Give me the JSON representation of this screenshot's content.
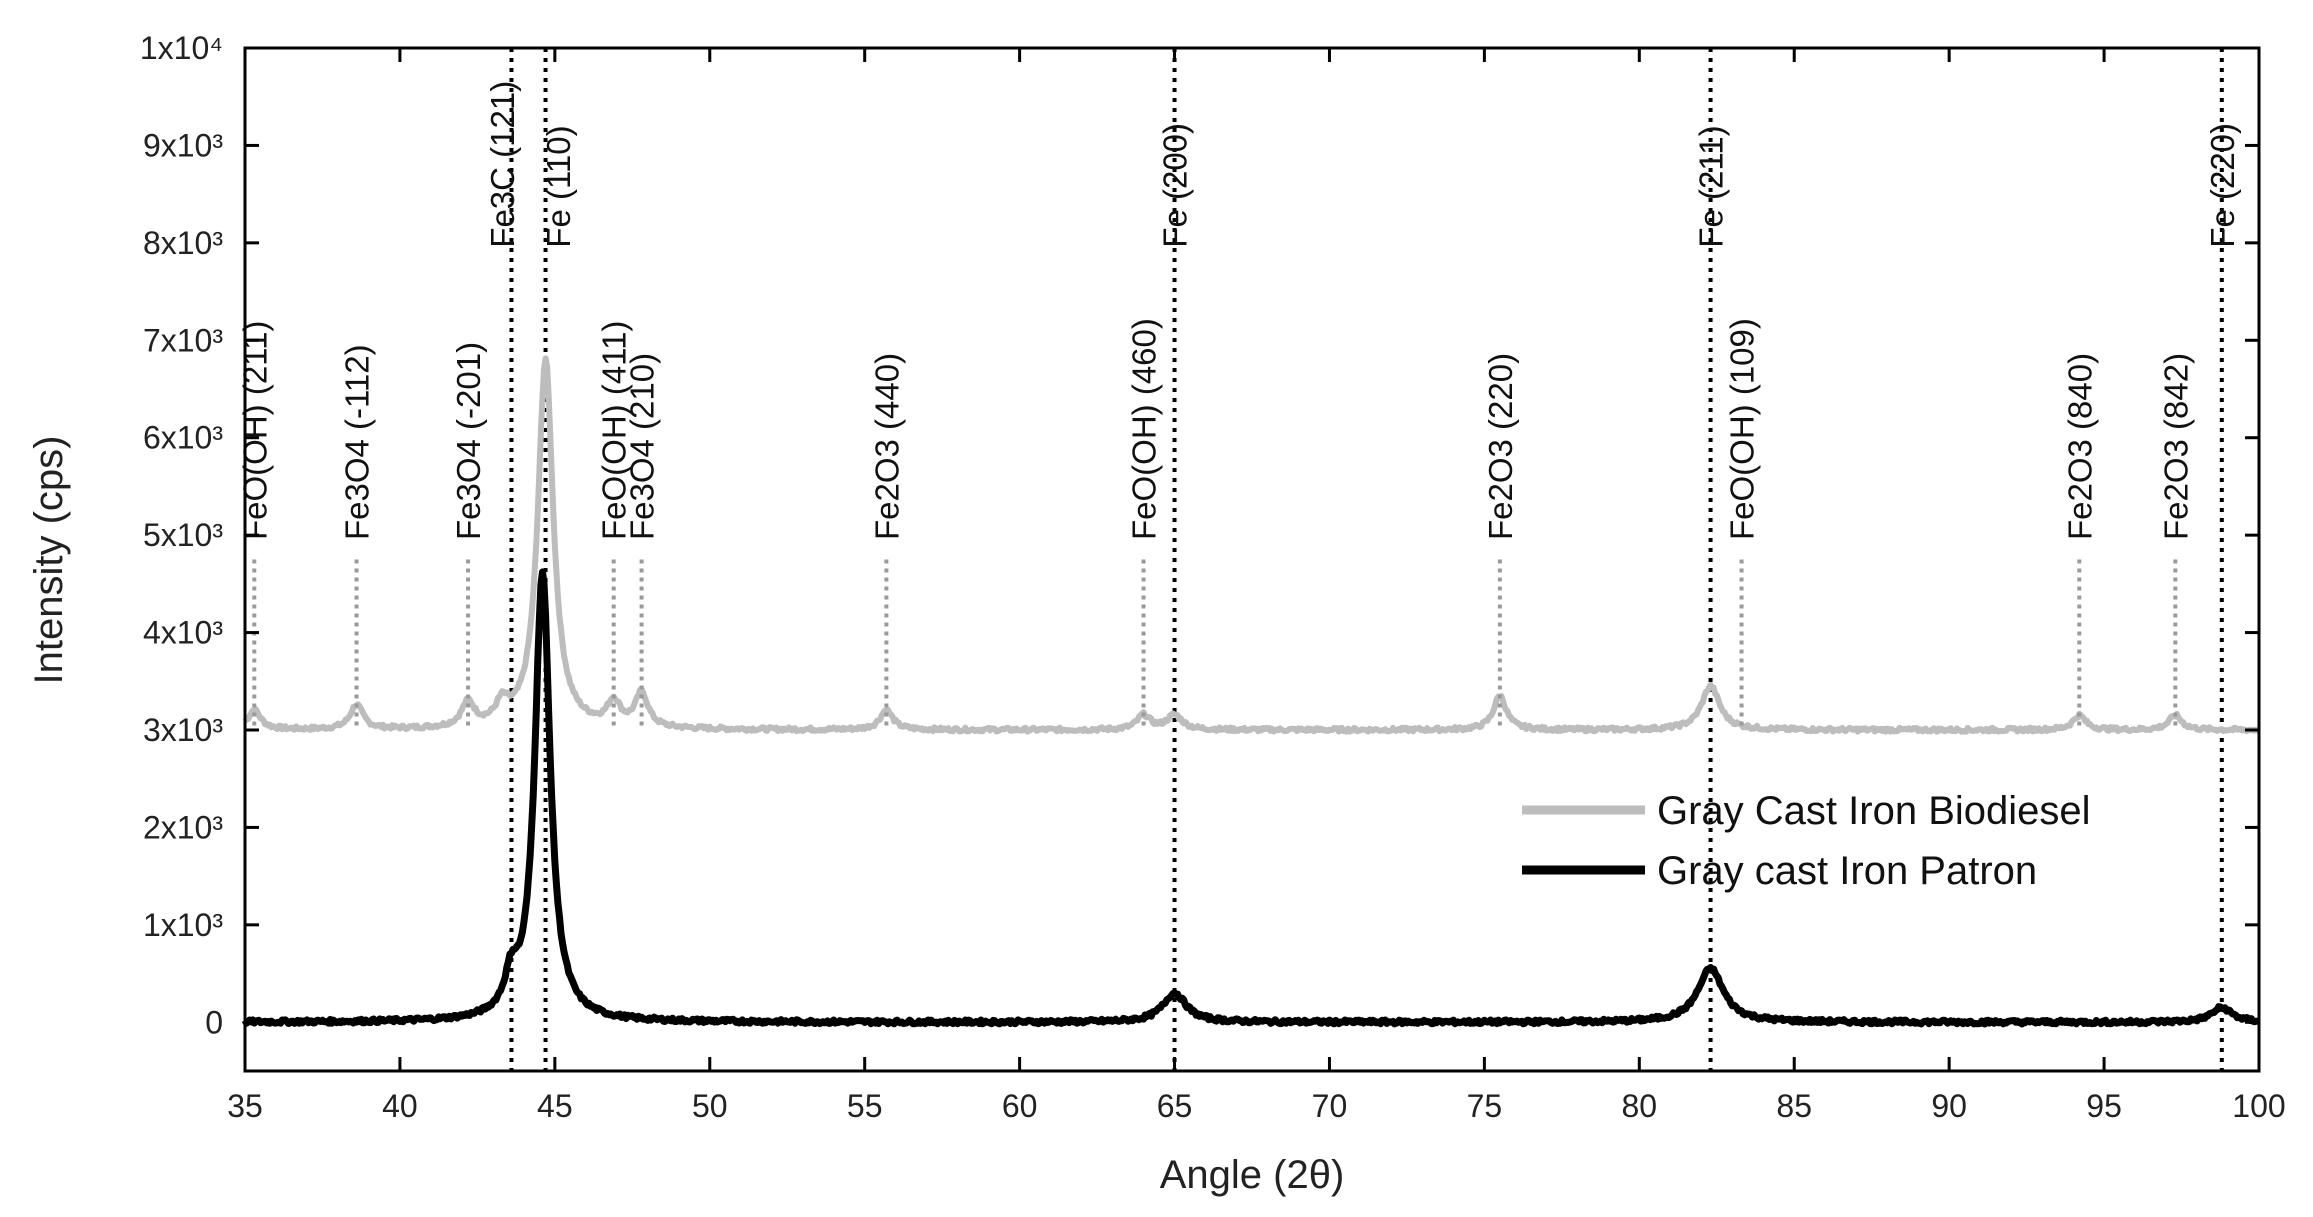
{
  "chart_data": {
    "type": "line",
    "xlabel": "Angle (2θ)",
    "ylabel": "Intensity (cps)",
    "xlim": [
      35,
      100
    ],
    "ylim": [
      -500,
      10000
    ],
    "x_ticks": [
      35,
      40,
      45,
      50,
      55,
      60,
      65,
      70,
      75,
      80,
      85,
      90,
      95,
      100
    ],
    "y_ticks": [
      {
        "value": 0,
        "label": "0"
      },
      {
        "value": 1000,
        "label": "1x10³"
      },
      {
        "value": 2000,
        "label": "2x10³"
      },
      {
        "value": 3000,
        "label": "3x10³"
      },
      {
        "value": 4000,
        "label": "4x10³"
      },
      {
        "value": 5000,
        "label": "5x10³"
      },
      {
        "value": 6000,
        "label": "6x10³"
      },
      {
        "value": 7000,
        "label": "7x10³"
      },
      {
        "value": 8000,
        "label": "8x10³"
      },
      {
        "value": 9000,
        "label": "9x10³"
      },
      {
        "value": 10000,
        "label": "1x10⁴"
      }
    ],
    "legend_position": "right",
    "series": [
      {
        "name": "Gray Cast Iron Biodiesel",
        "color": "#bdbdbd",
        "baseline": 3000,
        "peaks": [
          {
            "x": 35.3,
            "height": 200,
            "width": 0.25
          },
          {
            "x": 38.6,
            "height": 250,
            "width": 0.25
          },
          {
            "x": 42.2,
            "height": 250,
            "width": 0.25
          },
          {
            "x": 43.3,
            "height": 200,
            "width": 0.25
          },
          {
            "x": 44.7,
            "height": 3800,
            "width": 0.3
          },
          {
            "x": 46.9,
            "height": 250,
            "width": 0.25
          },
          {
            "x": 47.8,
            "height": 350,
            "width": 0.25
          },
          {
            "x": 55.7,
            "height": 200,
            "width": 0.25
          },
          {
            "x": 64.0,
            "height": 150,
            "width": 0.25
          },
          {
            "x": 65.0,
            "height": 150,
            "width": 0.3
          },
          {
            "x": 75.5,
            "height": 350,
            "width": 0.25
          },
          {
            "x": 82.3,
            "height": 450,
            "width": 0.35
          },
          {
            "x": 94.2,
            "height": 150,
            "width": 0.25
          },
          {
            "x": 97.3,
            "height": 150,
            "width": 0.25
          }
        ]
      },
      {
        "name": "Gray cast Iron Patron",
        "color": "#000000",
        "baseline": 0,
        "peaks": [
          {
            "x": 43.6,
            "height": 350,
            "width": 0.25
          },
          {
            "x": 44.6,
            "height": 4600,
            "width": 0.3
          },
          {
            "x": 65.0,
            "height": 300,
            "width": 0.45
          },
          {
            "x": 82.3,
            "height": 550,
            "width": 0.5
          },
          {
            "x": 98.8,
            "height": 150,
            "width": 0.4
          }
        ]
      }
    ],
    "reference_lines": [
      43.6,
      44.7,
      65.0,
      82.3,
      98.8
    ],
    "peak_annotations": [
      {
        "x": 35.3,
        "label": "FeO(OH) (211)",
        "label_y": 4950
      },
      {
        "x": 38.6,
        "label": "Fe3O4 (-112)",
        "label_y": 4950
      },
      {
        "x": 42.2,
        "label": "Fe3O4 (-201)",
        "label_y": 4950
      },
      {
        "x": 43.3,
        "label": "Fe3C (121)",
        "label_y": 7950
      },
      {
        "x": 45.1,
        "label": "Fe (110)",
        "label_y": 7950
      },
      {
        "x": 46.9,
        "label": "FeO(OH) (411)",
        "label_y": 4950
      },
      {
        "x": 47.8,
        "label": "Fe3O4 (210)",
        "label_y": 4950
      },
      {
        "x": 55.7,
        "label": "Fe2O3 (440)",
        "label_y": 4950
      },
      {
        "x": 64.0,
        "label": "FeO(OH) (460)",
        "label_y": 4950
      },
      {
        "x": 65.0,
        "label": "Fe (200)",
        "label_y": 7950
      },
      {
        "x": 75.5,
        "label": "Fe2O3 (220)",
        "label_y": 4950
      },
      {
        "x": 82.3,
        "label": "Fe (211)",
        "label_y": 7950
      },
      {
        "x": 83.3,
        "label": "FeO(OH) (109)",
        "label_y": 4950
      },
      {
        "x": 94.2,
        "label": "Fe2O3 (840)",
        "label_y": 4950
      },
      {
        "x": 97.3,
        "label": "Fe2O3 (842)",
        "label_y": 4950
      },
      {
        "x": 98.8,
        "label": "Fe (220)",
        "label_y": 7950
      }
    ]
  }
}
